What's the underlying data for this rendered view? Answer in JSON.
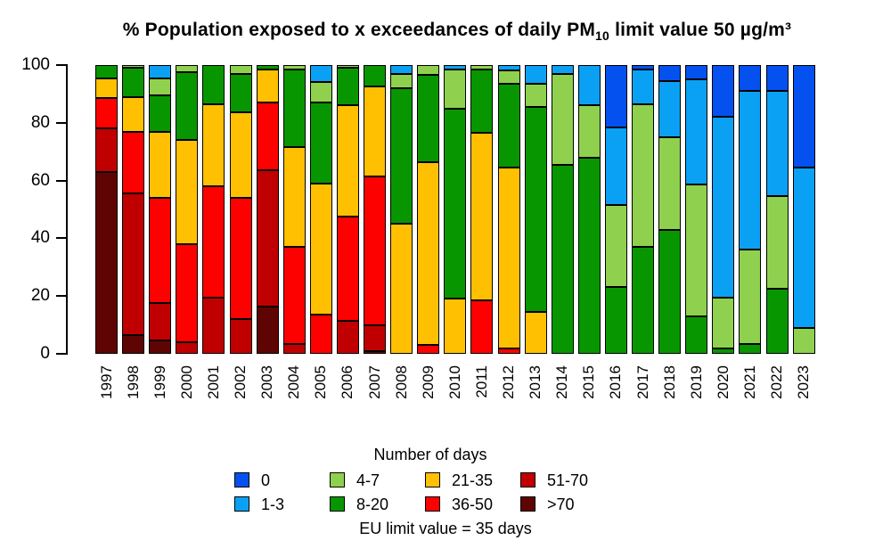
{
  "title": {
    "text": "% Population exposed to x exceedances of daily PM10 limit value 50 µg/m³",
    "prefix": "% Population exposed to x exceedances of daily PM",
    "subscript": "10",
    "suffix": " limit value 50 µg/m³"
  },
  "legend": {
    "title": "Number of days",
    "note": "EU limit value = 35 days",
    "columns": [
      [
        "0",
        "1-3"
      ],
      [
        "4-7",
        "8-20"
      ],
      [
        "21-35",
        "36-50"
      ],
      [
        "51-70",
        ">70"
      ]
    ]
  },
  "colors": {
    "0": "#0551F0",
    "1-3": "#0AA1F5",
    "4-7": "#8FD14E",
    "8-20": "#089600",
    "21-35": "#FFC002",
    "36-50": "#FD0100",
    "51-70": "#C00000",
    ">70": "#5E0503"
  },
  "chart_data": {
    "type": "bar",
    "stacked": true,
    "title": "% Population exposed to x exceedances of daily PM10 limit value 50 µg/m³",
    "xlabel": "",
    "ylabel": "",
    "ylim": [
      0,
      100
    ],
    "yticks": [
      0,
      20,
      40,
      60,
      80,
      100
    ],
    "grid": false,
    "legend_title": "Number of days",
    "annotation": "EU limit value = 35 days",
    "legend_position": "bottom",
    "categories": [
      "1997",
      "1998",
      "1999",
      "2000",
      "2001",
      "2002",
      "2003",
      "2004",
      "2005",
      "2006",
      "2007",
      "2008",
      "2009",
      "2010",
      "2011",
      "2012",
      "2013",
      "2014",
      "2015",
      "2016",
      "2017",
      "2018",
      "2019",
      "2020",
      "2021",
      "2022",
      "2023"
    ],
    "stack_order_bottom_to_top": [
      ">70",
      "51-70",
      "36-50",
      "21-35",
      "8-20",
      "4-7",
      "1-3",
      "0"
    ],
    "series": [
      {
        "name": ">70",
        "color": "#5E0503",
        "values": [
          63,
          6.5,
          4.5,
          0,
          0,
          0,
          16.5,
          0,
          0,
          0,
          1,
          0,
          0,
          0,
          0,
          0,
          0,
          0,
          0,
          0,
          0,
          0,
          0,
          0,
          0,
          0,
          0
        ]
      },
      {
        "name": "51-70",
        "color": "#C00000",
        "values": [
          15,
          49,
          13,
          4,
          19.5,
          12,
          47,
          3.5,
          0,
          11.5,
          9,
          0,
          0,
          0,
          0,
          0,
          0,
          0,
          0,
          0,
          0,
          0,
          0,
          0,
          0,
          0,
          0
        ]
      },
      {
        "name": "36-50",
        "color": "#FD0100",
        "values": [
          10.5,
          21.5,
          36.5,
          34,
          38.5,
          42,
          23.5,
          33.5,
          13.5,
          36,
          51.5,
          0,
          3,
          0,
          18.5,
          2,
          0,
          0,
          0,
          0,
          0,
          0,
          0,
          0,
          0,
          0,
          0
        ]
      },
      {
        "name": "21-35",
        "color": "#FFC002",
        "values": [
          7,
          12,
          23,
          36,
          28.5,
          29.5,
          11.5,
          34.5,
          45.5,
          38.5,
          31,
          45,
          63.5,
          19,
          58,
          62.5,
          14.5,
          0,
          0,
          0,
          0,
          0,
          0,
          0,
          0,
          0,
          0
        ]
      },
      {
        "name": "8-20",
        "color": "#089600",
        "values": [
          4.5,
          10,
          12.5,
          23.5,
          13.5,
          13.5,
          1.5,
          27,
          28,
          13,
          7.5,
          47,
          30,
          66,
          22,
          29,
          71,
          65.5,
          68,
          23,
          37,
          43,
          13,
          2,
          3.5,
          22.5,
          0
        ]
      },
      {
        "name": "4-7",
        "color": "#8FD14E",
        "values": [
          0,
          1,
          6,
          2.5,
          0,
          3,
          0,
          1.5,
          7,
          1,
          0,
          5,
          3.5,
          13.5,
          1.5,
          4.5,
          8,
          31.5,
          18,
          28.5,
          49.5,
          32,
          45.5,
          17.5,
          32.5,
          32,
          9
        ]
      },
      {
        "name": "1-3",
        "color": "#0AA1F5",
        "values": [
          0,
          0,
          4.5,
          0,
          0,
          0,
          0,
          0,
          6,
          0,
          0,
          3,
          0,
          1.5,
          0,
          2,
          6.5,
          3,
          14,
          27,
          12,
          19.5,
          36.5,
          62.5,
          55,
          36.5,
          55.5
        ]
      },
      {
        "name": "0",
        "color": "#0551F0",
        "values": [
          0,
          0,
          0,
          0,
          0,
          0,
          0,
          0,
          0,
          0,
          0,
          0,
          0,
          0,
          0,
          0,
          0,
          0,
          0,
          21.5,
          1.5,
          5.5,
          5,
          18,
          9,
          9,
          35.5
        ]
      }
    ]
  }
}
